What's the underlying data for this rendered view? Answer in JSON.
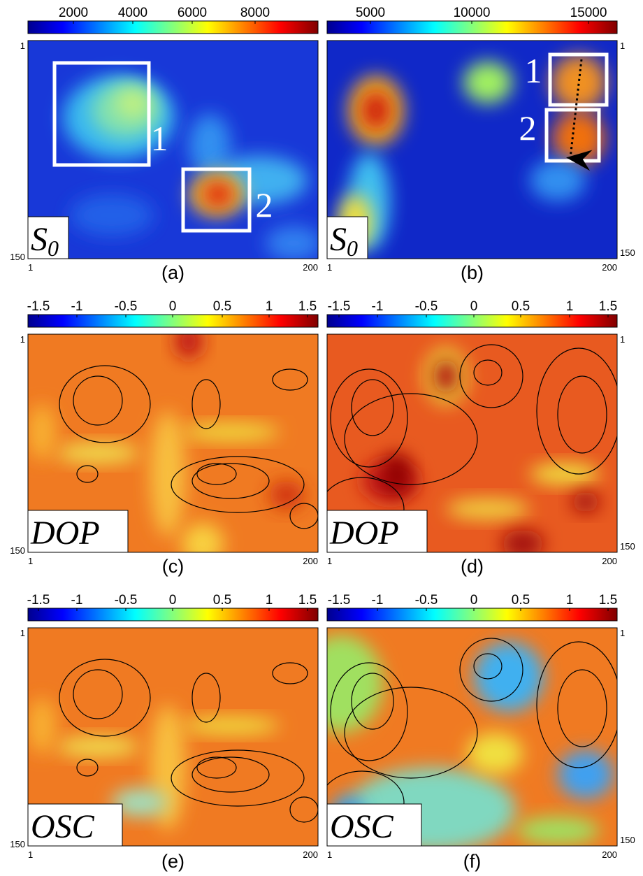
{
  "panels": [
    {
      "colorbar_ticks": [
        2000,
        4000,
        6000,
        8000
      ],
      "y_top": 1,
      "y_bottom": 150,
      "x_left": 1,
      "x_right": 200,
      "label": "(a)",
      "overlay": {
        "main": "S",
        "sub": "0"
      },
      "boxes": [
        "1",
        "2"
      ]
    },
    {
      "colorbar_ticks": [
        5000,
        10000,
        15000
      ],
      "y_top": 1,
      "y_bottom": 150,
      "x_left": 1,
      "x_right": 200,
      "label": "(b)",
      "overlay": {
        "main": "S",
        "sub": "0"
      },
      "boxes": [
        "1",
        "2"
      ]
    },
    {
      "colorbar_ticks": [
        -1.5,
        -1,
        -0.5,
        0,
        0.5,
        1,
        1.5
      ],
      "y_top": 1,
      "y_bottom": 150,
      "x_left": 1,
      "x_right": 200,
      "label": "(c)",
      "overlay": {
        "main": "DOP"
      }
    },
    {
      "colorbar_ticks": [
        -1.5,
        -1,
        -0.5,
        0,
        0.5,
        1,
        1.5
      ],
      "y_top": 1,
      "y_bottom": 150,
      "x_left": 1,
      "x_right": 200,
      "label": "(d)",
      "overlay": {
        "main": "DOP"
      }
    },
    {
      "colorbar_ticks": [
        -1.5,
        -1,
        -0.5,
        0,
        0.5,
        1,
        1.5
      ],
      "y_top": 1,
      "y_bottom": 150,
      "x_left": 1,
      "x_right": 200,
      "label": "(e)",
      "overlay": {
        "main": "OSC"
      }
    },
    {
      "colorbar_ticks": [
        -1.5,
        -1,
        -0.5,
        0,
        0.5,
        1,
        1.5
      ],
      "y_top": 1,
      "y_bottom": 150,
      "x_left": 1,
      "x_right": 200,
      "label": "(f)",
      "overlay": {
        "main": "OSC"
      }
    }
  ]
}
